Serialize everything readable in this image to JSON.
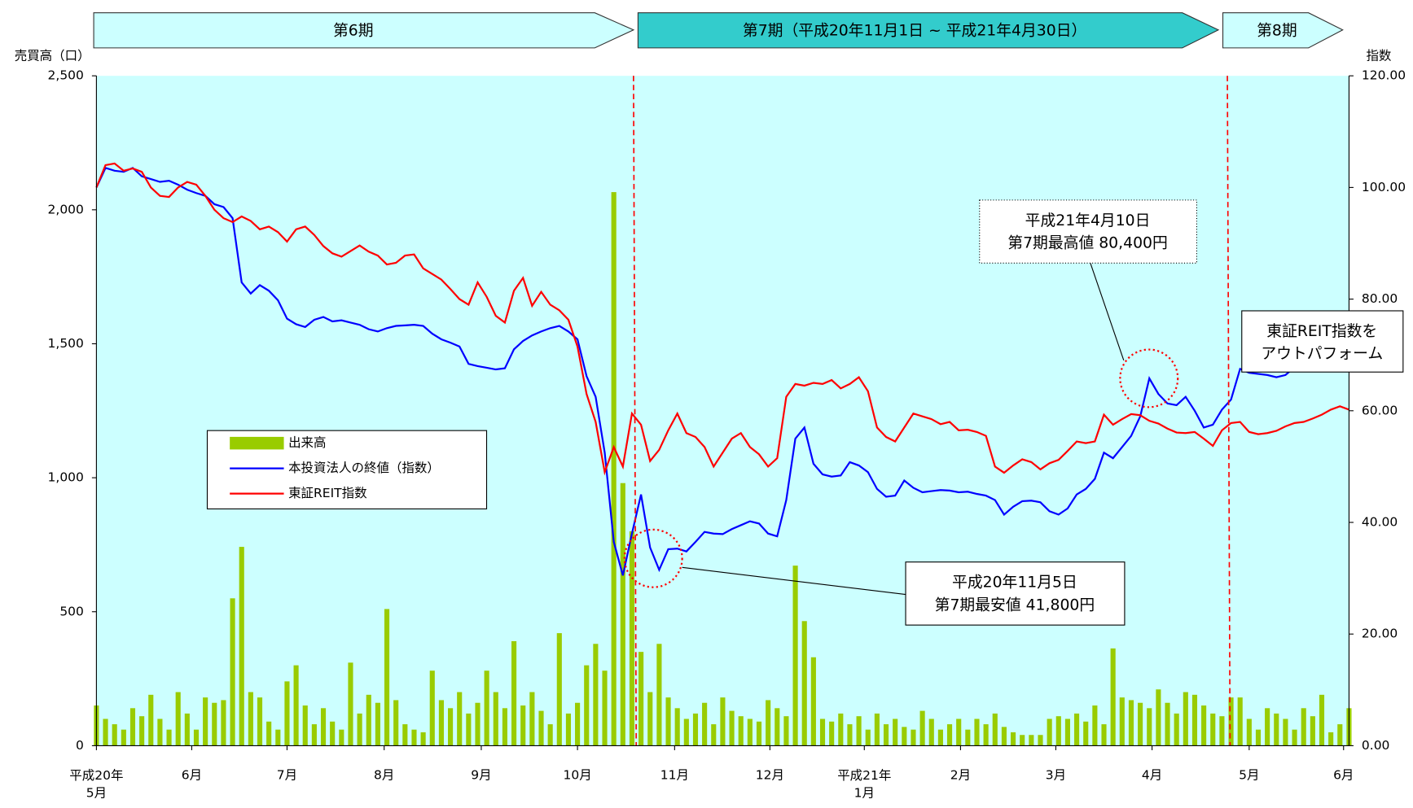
{
  "chart_data": {
    "type": "bar",
    "periods": [
      "第6期",
      "第7期（平成20年11月1日 ~ 平成21年4月30日）",
      "第8期"
    ],
    "ylabel": "売買高（口）",
    "y2label": "指数",
    "xlim": [
      0,
      138
    ],
    "xticks": [
      {
        "value": 0,
        "label": "平成20年\n5月"
      },
      {
        "value": 10.5,
        "label": "6月"
      },
      {
        "value": 21,
        "label": "7月"
      },
      {
        "value": 31.7,
        "label": "8月"
      },
      {
        "value": 42.4,
        "label": "9月"
      },
      {
        "value": 53,
        "label": "10月"
      },
      {
        "value": 63.7,
        "label": "11月"
      },
      {
        "value": 74.2,
        "label": "12月"
      },
      {
        "value": 84.6,
        "label": "平成21年\n1月"
      },
      {
        "value": 95.2,
        "label": "2月"
      },
      {
        "value": 105.7,
        "label": "3月"
      },
      {
        "value": 116.3,
        "label": "4月"
      },
      {
        "value": 127,
        "label": "5月"
      },
      {
        "value": 137.4,
        "label": "6月"
      }
    ],
    "ylim": [
      0,
      2500
    ],
    "yticks": [
      0,
      500,
      {
        "value": 1000,
        "label": "1,000"
      },
      {
        "value": 1500,
        "label": "1,500"
      },
      {
        "value": 2000,
        "label": "2,000"
      },
      {
        "value": 2500,
        "label": "2,500"
      }
    ],
    "y2lim": [
      0,
      120
    ],
    "y2ticks": [
      {
        "value": 0,
        "label": "0.00"
      },
      {
        "value": 20,
        "label": "20.00"
      },
      {
        "value": 40,
        "label": "40.00"
      },
      {
        "value": 60,
        "label": "60.00"
      },
      {
        "value": 80,
        "label": "80.00"
      },
      {
        "value": 100,
        "label": "100.00"
      },
      {
        "value": 120,
        "label": "120.00"
      }
    ],
    "legend": "left",
    "series": [
      {
        "name": "出来高",
        "type": "bar",
        "color": "#99cc00",
        "values": [
          150,
          100,
          80,
          60,
          140,
          110,
          190,
          100,
          60,
          200,
          120,
          60,
          180,
          160,
          170,
          550,
          742,
          200,
          180,
          90,
          60,
          240,
          300,
          150,
          80,
          140,
          90,
          60,
          310,
          120,
          190,
          160,
          510,
          170,
          80,
          60,
          50,
          280,
          170,
          140,
          200,
          120,
          160,
          280,
          200,
          140,
          390,
          150,
          200,
          130,
          80,
          420,
          120,
          160,
          300,
          380,
          280,
          2066,
          980,
          800,
          350,
          200,
          380,
          180,
          140,
          100,
          120,
          160,
          80,
          180,
          130,
          110,
          100,
          90,
          170,
          140,
          110,
          672,
          465,
          330,
          100,
          90,
          120,
          80,
          110,
          60,
          120,
          80,
          100,
          70,
          60,
          130,
          100,
          60,
          80,
          100,
          60,
          100,
          80,
          120,
          70,
          50,
          40,
          40,
          40,
          100,
          110,
          100,
          120,
          90,
          150,
          80,
          363,
          180,
          170,
          160,
          140,
          210,
          160,
          120,
          200,
          190,
          150,
          120,
          110,
          180,
          180,
          100,
          60,
          140,
          120,
          100,
          60,
          140,
          110,
          190,
          50,
          80,
          140
        ]
      },
      {
        "name": "本投資法人の終値（指数）",
        "type": "line",
        "axis": "y2",
        "color": "#0000ff",
        "values": [
          100,
          103.5,
          103,
          102.8,
          103.5,
          102,
          101.5,
          101,
          101.2,
          100.5,
          99.6,
          99,
          98.5,
          97,
          96.5,
          94.5,
          83,
          81,
          82.5,
          81.5,
          79.8,
          76.5,
          75.5,
          75,
          76.3,
          76.8,
          76,
          76.2,
          75.8,
          75.4,
          74.6,
          74.2,
          74.8,
          75.2,
          75.3,
          75.4,
          75.2,
          73.8,
          72.8,
          72.2,
          71.5,
          68.4,
          68,
          67.7,
          67.4,
          67.6,
          71,
          72.5,
          73.5,
          74.2,
          74.8,
          75.2,
          74.2,
          72.8,
          66.2,
          62.5,
          52.5,
          36.5,
          30.5,
          38,
          45,
          35.5,
          31.5,
          35.2,
          35.3,
          34.8,
          36.5,
          38.3,
          38,
          37.9,
          38.8,
          39.5,
          40.2,
          39.8,
          38,
          37.5,
          44,
          55,
          57,
          50.5,
          48.6,
          48.2,
          48.4,
          50.8,
          50.2,
          49,
          46,
          44.6,
          44.8,
          47.5,
          46.2,
          45.4,
          45.6,
          45.8,
          45.7,
          45.4,
          45.5,
          45.1,
          44.8,
          44,
          41.4,
          42.8,
          43.8,
          43.9,
          43.6,
          42,
          41.4,
          42.5,
          45,
          46,
          47.8,
          52.5,
          51.5,
          53.5,
          55.5,
          59,
          65.8,
          63,
          61.3,
          61,
          62.5,
          60,
          57,
          57.5,
          60.2,
          62,
          67.5,
          66.8,
          66.6,
          66.4,
          66,
          66.4,
          67.8,
          68.2,
          68,
          68.4,
          68.3,
          69,
          70.3
        ]
      },
      {
        "name": "東証REIT指数",
        "type": "line",
        "axis": "y2",
        "color": "#ff0000",
        "values": [
          100,
          104,
          104.3,
          103,
          103.4,
          102.8,
          100,
          98.5,
          98.3,
          100,
          101,
          100.5,
          98.5,
          96,
          94.5,
          93.8,
          94.8,
          94,
          92.5,
          93,
          92,
          90.3,
          92.5,
          93,
          91.5,
          89.5,
          88.2,
          87.6,
          88.6,
          89.6,
          88.5,
          87.8,
          86.2,
          86.5,
          87.8,
          88,
          85.5,
          84.5,
          83.5,
          81.8,
          80,
          79,
          83,
          80.4,
          77,
          75.8,
          81.5,
          83.8,
          78.8,
          81.3,
          79,
          78,
          76.3,
          71.5,
          63,
          58,
          49,
          53.5,
          50,
          59.5,
          57.5,
          51,
          53,
          56.5,
          59.5,
          56,
          55.3,
          53.5,
          50,
          52.5,
          55,
          56,
          53.5,
          52.2,
          50,
          51.5,
          62.5,
          64.8,
          64.5,
          65,
          64.8,
          65.5,
          64,
          64.8,
          66,
          63.5,
          57,
          55.3,
          54.5,
          57,
          59.5,
          59,
          58.5,
          57.6,
          58,
          56.5,
          56.6,
          56.2,
          55.5,
          50,
          48.9,
          50.2,
          51.3,
          50.8,
          49.5,
          50.6,
          51.2,
          52.8,
          54.5,
          54.2,
          54.5,
          59.3,
          57.5,
          58.5,
          59.4,
          59.2,
          58.2,
          57.7,
          56.8,
          56.1,
          56,
          56.2,
          55,
          53.7,
          56.5,
          57.8,
          58,
          56.2,
          55.8,
          56,
          56.4,
          57.2,
          57.8,
          58,
          58.6,
          59.3,
          60.2,
          60.8,
          60.2
        ]
      }
    ],
    "annotations": [
      {
        "lines": [
          "平成21年4月10日",
          "第7期最高値 80,400円"
        ]
      },
      {
        "lines": [
          "平成20年11月5日",
          "第7期最安値 41,800円"
        ]
      },
      {
        "lines": [
          "東証REIT指数を",
          "アウトパフォーム"
        ]
      }
    ]
  }
}
